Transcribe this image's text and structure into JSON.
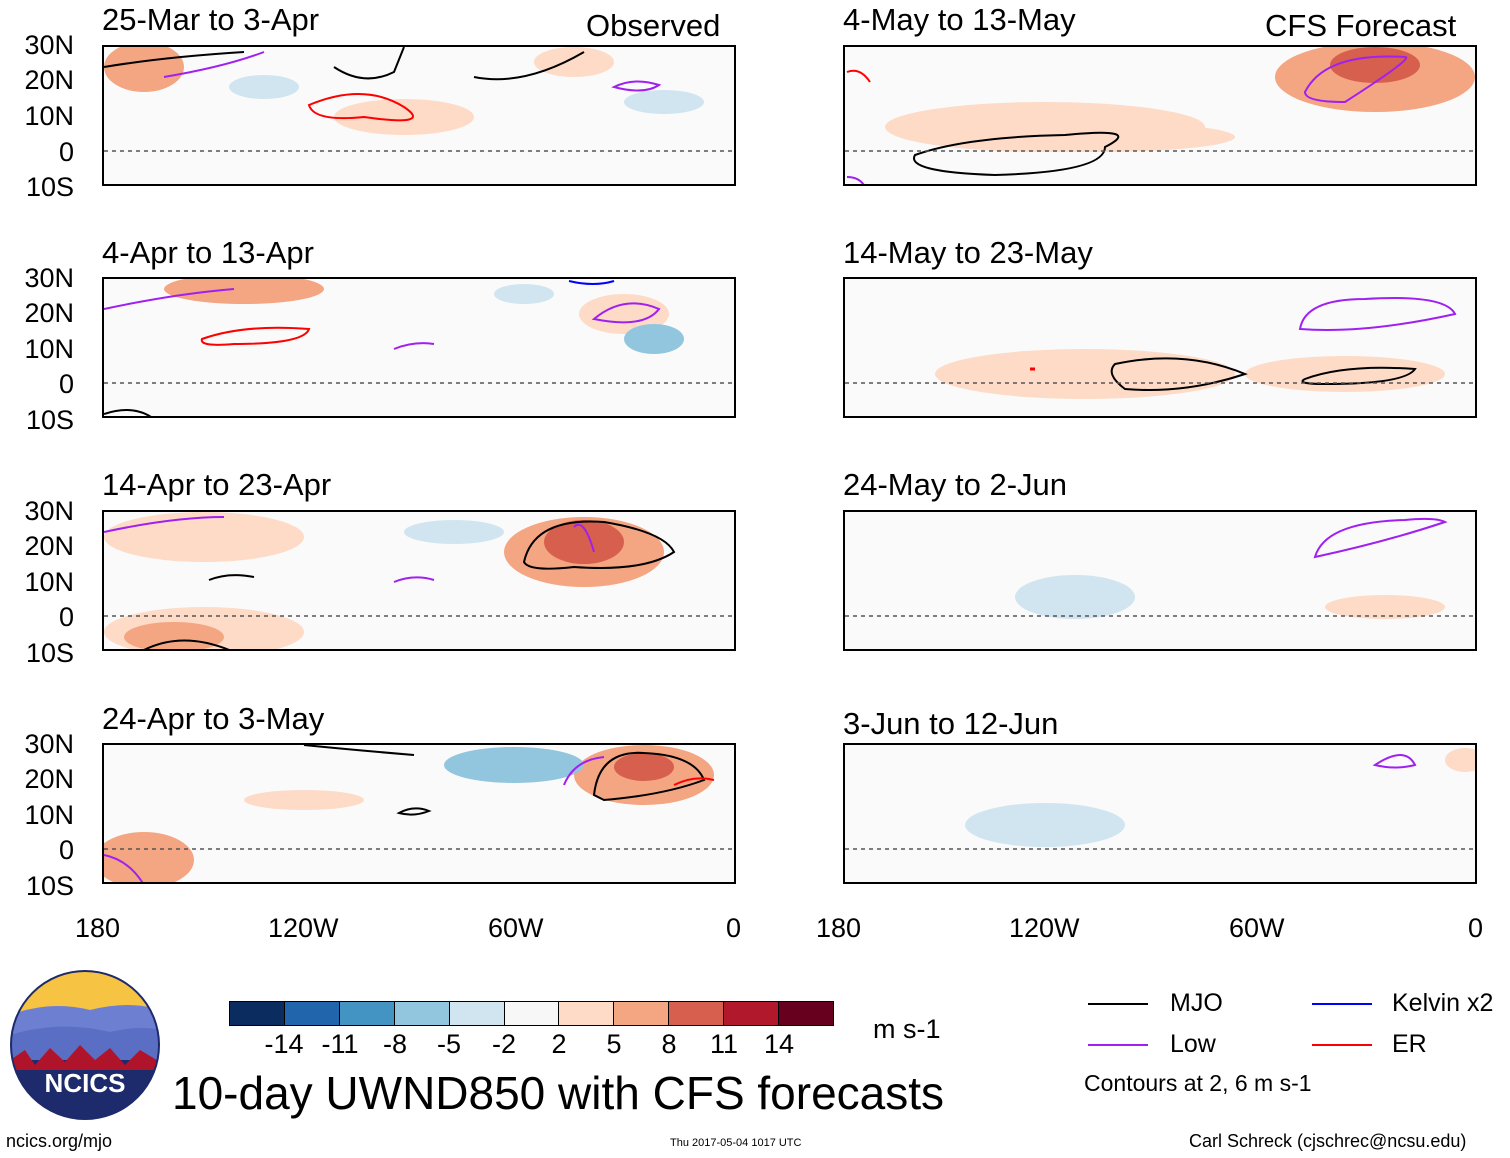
{
  "figure": {
    "title": "10-day UWND850 with CFS forecasts",
    "left_header": "Observed",
    "right_header": "CFS Forecast",
    "source_url": "ncics.org/mjo",
    "timestamp": "Thu 2017-05-04 1017 UTC",
    "author": "Carl Schreck (cjschrec@ncsu.edu)",
    "logo_text": "NCICS"
  },
  "axes": {
    "lat_labels": [
      "30N",
      "20N",
      "10N",
      "0",
      "10S"
    ],
    "lon_labels": [
      "180",
      "120W",
      "60W",
      "0"
    ]
  },
  "panels": {
    "observed": [
      {
        "period": "25-Mar to 3-Apr"
      },
      {
        "period": "4-Apr to 13-Apr"
      },
      {
        "period": "14-Apr to 23-Apr"
      },
      {
        "period": "24-Apr to 3-May"
      }
    ],
    "forecast": [
      {
        "period": "4-May to 13-May"
      },
      {
        "period": "14-May to 23-May"
      },
      {
        "period": "24-May to 2-Jun"
      },
      {
        "period": "3-Jun to 12-Jun"
      }
    ]
  },
  "colorbar": {
    "unit": "m s-1",
    "ticks": [
      "-14",
      "-11",
      "-8",
      "-5",
      "-2",
      "2",
      "5",
      "8",
      "11",
      "14"
    ],
    "colors": [
      "#0a2c5e",
      "#2166ac",
      "#4393c3",
      "#92c5de",
      "#d1e5f0",
      "#f7f7f7",
      "#fddbc7",
      "#f4a582",
      "#d6604d",
      "#b2182b",
      "#67001f"
    ]
  },
  "legend": {
    "items": [
      {
        "label": "MJO",
        "color": "#000000"
      },
      {
        "label": "Kelvin x2",
        "color": "#0000ff"
      },
      {
        "label": "Low",
        "color": "#a020f0"
      },
      {
        "label": "ER",
        "color": "#ff0000"
      }
    ],
    "note": "Contours at 2, 6 m s-1"
  }
}
